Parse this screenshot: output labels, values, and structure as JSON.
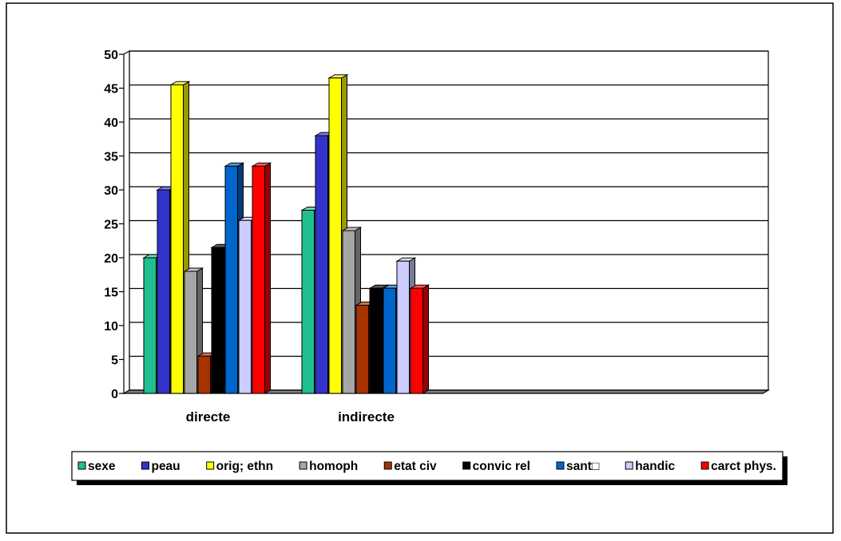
{
  "chart_data": {
    "type": "bar",
    "title": "",
    "xlabel": "",
    "ylabel": "",
    "ylim": [
      0,
      50
    ],
    "yticks": [
      0,
      5,
      10,
      15,
      20,
      25,
      30,
      35,
      40,
      45,
      50
    ],
    "grid": true,
    "legend_position": "bottom",
    "categories": [
      "directe",
      "indirecte"
    ],
    "series": [
      {
        "name": "sexe",
        "color": "#1fbf8f",
        "values": [
          20,
          27
        ]
      },
      {
        "name": "peau",
        "color": "#3333cc",
        "values": [
          30,
          38
        ]
      },
      {
        "name": "orig; ethn",
        "color": "#ffff00",
        "values": [
          45.5,
          46.5
        ]
      },
      {
        "name": "homoph",
        "color": "#a6a6a6",
        "values": [
          18,
          24
        ]
      },
      {
        "name": "etat civ",
        "color": "#a63300",
        "values": [
          5.5,
          13
        ]
      },
      {
        "name": "convic rel",
        "color": "#000000",
        "values": [
          21.5,
          15.5
        ]
      },
      {
        "name": "sant□",
        "color": "#0066cc",
        "values": [
          33.5,
          15.5
        ]
      },
      {
        "name": "handic",
        "color": "#ccccff",
        "values": [
          25.5,
          19.5
        ]
      },
      {
        "name": "carct phys.",
        "color": "#ff0000",
        "values": [
          33.5,
          15.5
        ]
      }
    ]
  }
}
